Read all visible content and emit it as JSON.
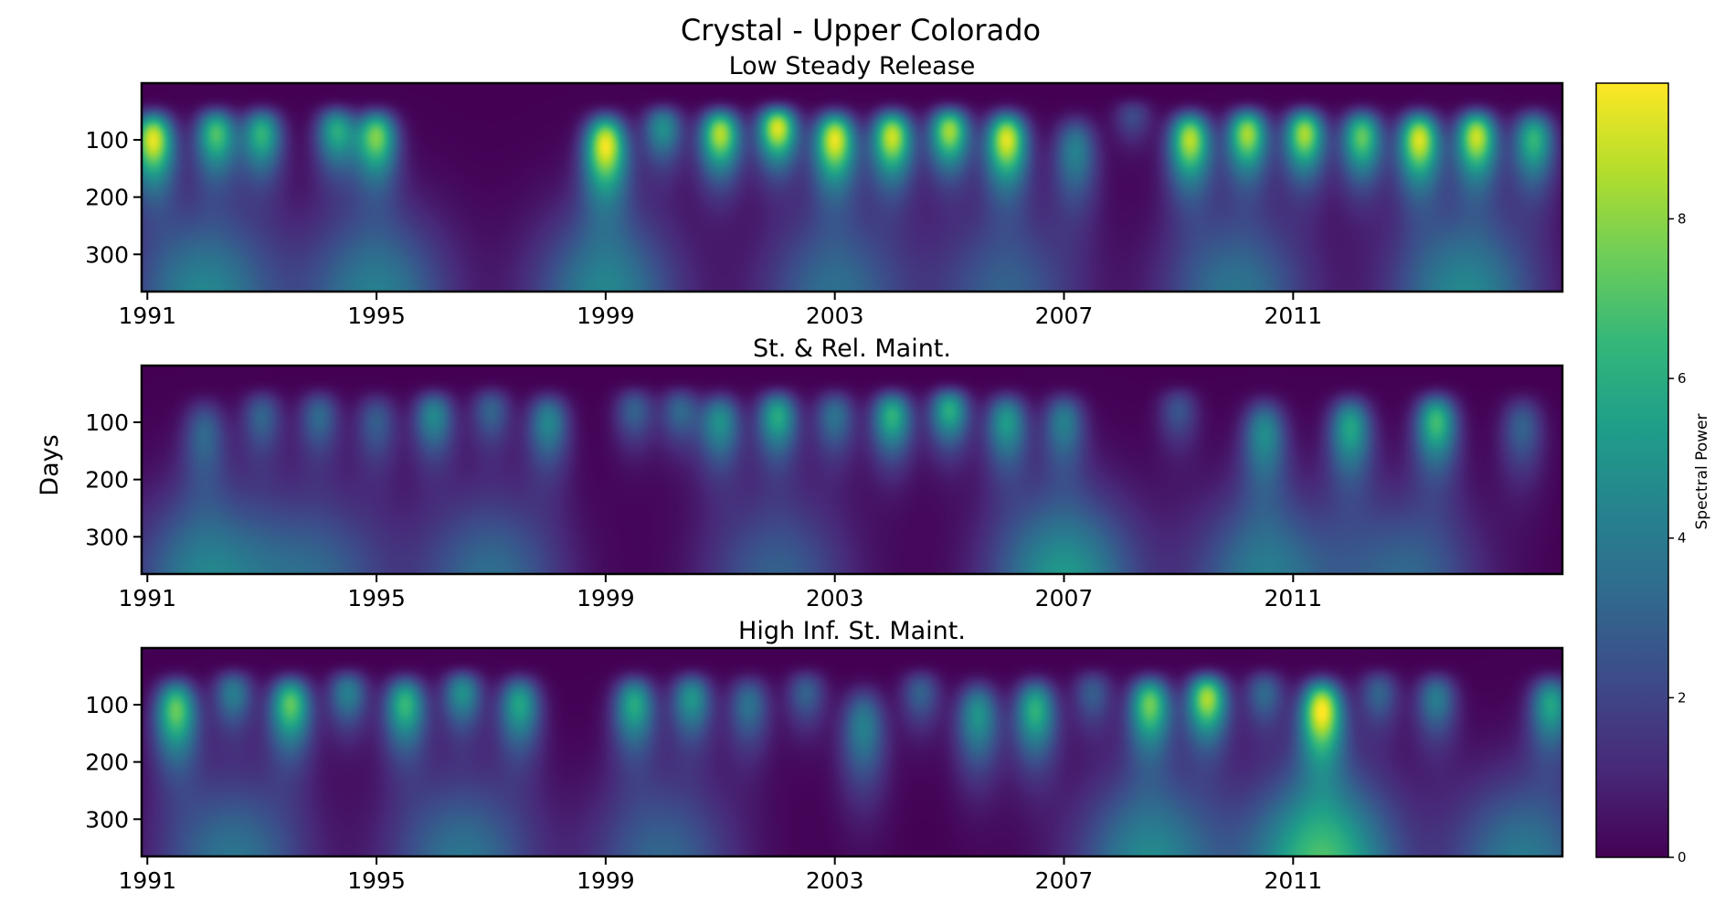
{
  "title": "Crystal - Upper Colorado",
  "shared_ylabel": "Days",
  "chart_data": [
    {
      "type": "heatmap",
      "title": "Low Steady Release",
      "ylabel": "Days",
      "x_tick_labels": [
        "1991",
        "1995",
        "1999",
        "2003",
        "2007",
        "2011"
      ],
      "y_tick_labels": [
        "100",
        "200",
        "300"
      ],
      "y_ticks": [
        100,
        200,
        300
      ],
      "xlim": [
        1990.9,
        2015.7
      ],
      "ylim": [
        365,
        1
      ],
      "features": [
        {
          "year": 1991.1,
          "period": 100,
          "power": 9.3
        },
        {
          "year": 1992.2,
          "period": 90,
          "power": 6.8
        },
        {
          "year": 1993.0,
          "period": 90,
          "power": 6.2
        },
        {
          "year": 1994.3,
          "period": 85,
          "power": 5.8
        },
        {
          "year": 1995.0,
          "period": 95,
          "power": 7.6
        },
        {
          "year": 1999.0,
          "period": 110,
          "power": 9.4
        },
        {
          "year": 2000.0,
          "period": 80,
          "power": 4.8
        },
        {
          "year": 2001.0,
          "period": 90,
          "power": 8.6
        },
        {
          "year": 2002.0,
          "period": 80,
          "power": 9.2
        },
        {
          "year": 2003.0,
          "period": 100,
          "power": 9.3
        },
        {
          "year": 2004.0,
          "period": 95,
          "power": 8.9
        },
        {
          "year": 2005.0,
          "period": 85,
          "power": 8.3
        },
        {
          "year": 2006.0,
          "period": 100,
          "power": 9.2
        },
        {
          "year": 2007.2,
          "period": 120,
          "power": 4.2
        },
        {
          "year": 2008.2,
          "period": 60,
          "power": 2.2
        },
        {
          "year": 2009.2,
          "period": 100,
          "power": 8.6
        },
        {
          "year": 2010.2,
          "period": 90,
          "power": 8.3
        },
        {
          "year": 2011.2,
          "period": 90,
          "power": 8.4
        },
        {
          "year": 2012.2,
          "period": 95,
          "power": 7.3
        },
        {
          "year": 2013.2,
          "period": 100,
          "power": 9.1
        },
        {
          "year": 2014.2,
          "period": 95,
          "power": 8.8
        },
        {
          "year": 2015.2,
          "period": 100,
          "power": 6.3
        }
      ],
      "low_freq": [
        {
          "year": 1992.0,
          "power": 4.5
        },
        {
          "year": 1995.0,
          "power": 4.2
        },
        {
          "year": 1999.0,
          "power": 4.4
        },
        {
          "year": 2003.0,
          "power": 3.5
        },
        {
          "year": 2006.0,
          "power": 3.0
        },
        {
          "year": 2010.0,
          "power": 3.8
        },
        {
          "year": 2014.0,
          "power": 4.6
        }
      ]
    },
    {
      "type": "heatmap",
      "title": "St. & Rel. Maint.",
      "ylabel": "Days",
      "x_tick_labels": [
        "1991",
        "1995",
        "1999",
        "2003",
        "2007",
        "2011"
      ],
      "y_tick_labels": [
        "100",
        "200",
        "300"
      ],
      "y_ticks": [
        100,
        200,
        300
      ],
      "xlim": [
        1990.9,
        2015.7
      ],
      "ylim": [
        365,
        1
      ],
      "features": [
        {
          "year": 1992.0,
          "period": 120,
          "power": 3.0
        },
        {
          "year": 1993.0,
          "period": 90,
          "power": 3.0
        },
        {
          "year": 1994.0,
          "period": 90,
          "power": 3.2
        },
        {
          "year": 1995.0,
          "period": 100,
          "power": 2.8
        },
        {
          "year": 1996.0,
          "period": 90,
          "power": 4.5
        },
        {
          "year": 1997.0,
          "period": 80,
          "power": 3.0
        },
        {
          "year": 1998.0,
          "period": 100,
          "power": 4.4
        },
        {
          "year": 1999.5,
          "period": 80,
          "power": 3.0
        },
        {
          "year": 2000.3,
          "period": 80,
          "power": 3.2
        },
        {
          "year": 2001.0,
          "period": 100,
          "power": 4.8
        },
        {
          "year": 2002.0,
          "period": 90,
          "power": 5.8
        },
        {
          "year": 2003.0,
          "period": 90,
          "power": 3.6
        },
        {
          "year": 2004.0,
          "period": 90,
          "power": 6.2
        },
        {
          "year": 2005.0,
          "period": 80,
          "power": 6.0
        },
        {
          "year": 2006.0,
          "period": 100,
          "power": 5.2
        },
        {
          "year": 2007.0,
          "period": 100,
          "power": 4.0
        },
        {
          "year": 2009.0,
          "period": 80,
          "power": 2.5
        },
        {
          "year": 2010.5,
          "period": 120,
          "power": 4.5
        },
        {
          "year": 2012.0,
          "period": 110,
          "power": 5.6
        },
        {
          "year": 2013.5,
          "period": 100,
          "power": 6.6
        },
        {
          "year": 2015.0,
          "period": 110,
          "power": 3.0
        }
      ],
      "low_freq": [
        {
          "year": 1992.0,
          "power": 4.2
        },
        {
          "year": 1994.0,
          "power": 3.0
        },
        {
          "year": 1997.0,
          "power": 3.5
        },
        {
          "year": 2002.0,
          "power": 3.0
        },
        {
          "year": 2007.0,
          "power": 5.2
        },
        {
          "year": 2010.5,
          "power": 4.0
        },
        {
          "year": 2013.0,
          "power": 3.2
        }
      ]
    },
    {
      "type": "heatmap",
      "title": "High Inf. St. Maint.",
      "ylabel": "Days",
      "x_tick_labels": [
        "1991",
        "1995",
        "1999",
        "2003",
        "2007",
        "2011"
      ],
      "y_tick_labels": [
        "100",
        "200",
        "300"
      ],
      "y_ticks": [
        100,
        200,
        300
      ],
      "xlim": [
        1990.9,
        2015.7
      ],
      "ylim": [
        365,
        1
      ],
      "features": [
        {
          "year": 1991.5,
          "period": 110,
          "power": 7.3
        },
        {
          "year": 1992.5,
          "period": 80,
          "power": 4.0
        },
        {
          "year": 1993.5,
          "period": 100,
          "power": 7.2
        },
        {
          "year": 1994.5,
          "period": 80,
          "power": 4.2
        },
        {
          "year": 1995.5,
          "period": 100,
          "power": 6.4
        },
        {
          "year": 1996.5,
          "period": 80,
          "power": 4.8
        },
        {
          "year": 1997.5,
          "period": 100,
          "power": 5.6
        },
        {
          "year": 1999.5,
          "period": 100,
          "power": 5.8
        },
        {
          "year": 2000.5,
          "period": 90,
          "power": 5.0
        },
        {
          "year": 2001.5,
          "period": 100,
          "power": 3.6
        },
        {
          "year": 2002.5,
          "period": 80,
          "power": 3.0
        },
        {
          "year": 2003.5,
          "period": 140,
          "power": 4.2
        },
        {
          "year": 2004.5,
          "period": 80,
          "power": 3.0
        },
        {
          "year": 2005.5,
          "period": 120,
          "power": 5.0
        },
        {
          "year": 2006.5,
          "period": 110,
          "power": 6.2
        },
        {
          "year": 2007.5,
          "period": 80,
          "power": 2.8
        },
        {
          "year": 2008.5,
          "period": 100,
          "power": 7.4
        },
        {
          "year": 2009.5,
          "period": 90,
          "power": 8.4
        },
        {
          "year": 2010.5,
          "period": 80,
          "power": 3.2
        },
        {
          "year": 2011.5,
          "period": 110,
          "power": 9.5
        },
        {
          "year": 2012.5,
          "period": 80,
          "power": 3.0
        },
        {
          "year": 2013.5,
          "period": 90,
          "power": 4.0
        },
        {
          "year": 2015.5,
          "period": 100,
          "power": 5.6
        }
      ],
      "low_freq": [
        {
          "year": 1992.5,
          "power": 3.8
        },
        {
          "year": 1996.5,
          "power": 3.8
        },
        {
          "year": 2000.0,
          "power": 3.2
        },
        {
          "year": 2008.5,
          "power": 4.6
        },
        {
          "year": 2011.5,
          "power": 6.8
        },
        {
          "year": 2015.0,
          "power": 4.0
        }
      ]
    }
  ],
  "colorbar": {
    "label": "Spectral Power",
    "tick_labels": [
      "0",
      "2",
      "4",
      "6",
      "8"
    ],
    "ticks": [
      0,
      2,
      4,
      6,
      8
    ],
    "range": [
      0,
      9.7
    ],
    "colormap": "viridis",
    "colors": [
      "#440154",
      "#482878",
      "#3e4989",
      "#31688e",
      "#26828e",
      "#1f9e89",
      "#35b779",
      "#6ece58",
      "#b5de2b",
      "#fde725"
    ]
  }
}
